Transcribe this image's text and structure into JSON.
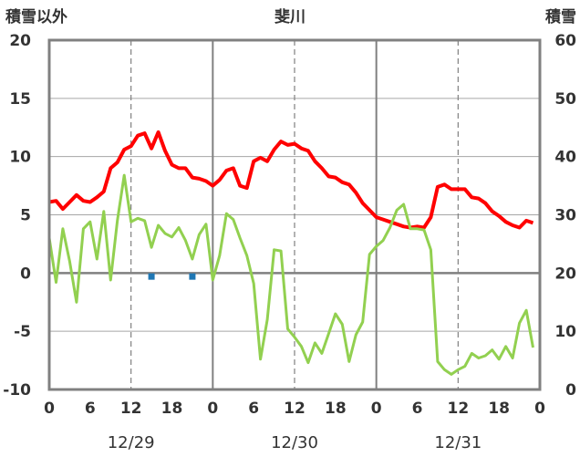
{
  "chart_data": {
    "type": "line",
    "title": "斐川",
    "left_axis_label": "積雪以外",
    "right_axis_label": "積雪",
    "y_left": {
      "min": -10,
      "max": 20,
      "ticks": [
        -10,
        -5,
        0,
        5,
        10,
        15,
        20
      ],
      "tick_labels": [
        "-10",
        "-5",
        "0",
        "5",
        "10",
        "15",
        "20"
      ]
    },
    "y_right": {
      "min": 0,
      "max": 60,
      "ticks": [
        0,
        10,
        20,
        30,
        40,
        50,
        60
      ],
      "tick_labels": [
        "0",
        "10",
        "20",
        "30",
        "40",
        "50",
        "60"
      ]
    },
    "x_axis": {
      "min_hour": 0,
      "max_hour": 72,
      "ticks": [
        {
          "hour": 0,
          "label": "0"
        },
        {
          "hour": 6,
          "label": "6"
        },
        {
          "hour": 12,
          "label": "12"
        },
        {
          "hour": 18,
          "label": "18"
        },
        {
          "hour": 24,
          "label": "0"
        },
        {
          "hour": 30,
          "label": "6"
        },
        {
          "hour": 36,
          "label": "12"
        },
        {
          "hour": 42,
          "label": "18"
        },
        {
          "hour": 48,
          "label": "0"
        },
        {
          "hour": 54,
          "label": "6"
        },
        {
          "hour": 60,
          "label": "12"
        },
        {
          "hour": 66,
          "label": "18"
        },
        {
          "hour": 72,
          "label": "0"
        }
      ],
      "date_labels": [
        {
          "hour": 12,
          "label": "12/29"
        },
        {
          "hour": 36,
          "label": "12/30"
        },
        {
          "hour": 60,
          "label": "12/31"
        }
      ],
      "day_boundaries": [
        24,
        48
      ],
      "dashed_grid_hours": [
        12,
        36,
        60
      ]
    },
    "grid": {
      "horizontal": true,
      "zero_line": true
    },
    "series": [
      {
        "color": "#ff0000",
        "axis": "left",
        "x": [
          0,
          1,
          2,
          3,
          4,
          5,
          6,
          7,
          8,
          9,
          10,
          11,
          12,
          13,
          14,
          15,
          16,
          17,
          18,
          19,
          20,
          21,
          22,
          23,
          24,
          25,
          26,
          27,
          28,
          29,
          30,
          31,
          32,
          33,
          34,
          35,
          36,
          37,
          38,
          39,
          40,
          41,
          42,
          43,
          44,
          45,
          46,
          47,
          48,
          49,
          50,
          51,
          52,
          53,
          54,
          55,
          56,
          57,
          58,
          59,
          60,
          61,
          62,
          63,
          64,
          65,
          66,
          67,
          68,
          69,
          70,
          71
        ],
        "y": [
          6.1,
          6.2,
          5.5,
          6.1,
          6.7,
          6.2,
          6.1,
          6.5,
          7.0,
          9.0,
          9.5,
          10.6,
          10.9,
          11.8,
          12.0,
          10.7,
          12.1,
          10.5,
          9.3,
          9.0,
          9.0,
          8.2,
          8.1,
          7.9,
          7.5,
          8.0,
          8.8,
          9.0,
          7.5,
          7.3,
          9.6,
          9.9,
          9.6,
          10.6,
          11.3,
          11.0,
          11.1,
          10.7,
          10.5,
          9.6,
          9.0,
          8.3,
          8.2,
          7.8,
          7.6,
          6.9,
          6.0,
          5.4,
          4.8,
          4.6,
          4.4,
          4.2,
          4.0,
          3.9,
          4.0,
          3.9,
          4.8,
          7.4,
          7.6,
          7.2,
          7.2,
          7.2,
          6.5,
          6.4,
          6.0,
          5.3,
          4.9,
          4.4,
          4.1,
          3.9,
          4.5,
          4.3
        ]
      },
      {
        "color": "#92d050",
        "axis": "left",
        "x": [
          0,
          1,
          2,
          3,
          4,
          5,
          6,
          7,
          8,
          9,
          10,
          11,
          12,
          13,
          14,
          15,
          16,
          17,
          18,
          19,
          20,
          21,
          22,
          23,
          24,
          25,
          26,
          27,
          28,
          29,
          30,
          31,
          32,
          33,
          34,
          35,
          36,
          37,
          38,
          39,
          40,
          41,
          42,
          43,
          44,
          45,
          46,
          47,
          48,
          49,
          50,
          51,
          52,
          53,
          54,
          55,
          56,
          57,
          58,
          59,
          60,
          61,
          62,
          63,
          64,
          65,
          66,
          67,
          68,
          69,
          70,
          71
        ],
        "y": [
          3.0,
          -0.8,
          3.8,
          1.0,
          -2.5,
          3.8,
          4.4,
          1.2,
          5.3,
          -0.6,
          4.5,
          8.4,
          4.4,
          4.7,
          4.5,
          2.2,
          4.1,
          3.4,
          3.1,
          3.9,
          2.8,
          1.2,
          3.3,
          4.2,
          -0.6,
          1.5,
          5.1,
          4.6,
          3.0,
          1.5,
          -0.9,
          -7.4,
          -4.0,
          2.0,
          1.9,
          -4.8,
          -5.5,
          -6.3,
          -7.7,
          -6.0,
          -6.9,
          -5.2,
          -3.5,
          -4.4,
          -7.6,
          -5.3,
          -4.2,
          1.6,
          2.3,
          2.8,
          3.9,
          5.4,
          5.9,
          3.8,
          3.8,
          3.7,
          2.0,
          -7.6,
          -8.3,
          -8.7,
          -8.3,
          -8.0,
          -6.9,
          -7.3,
          -7.1,
          -6.6,
          -7.4,
          -6.3,
          -7.3,
          -4.3,
          -3.2,
          -6.4
        ]
      },
      {
        "color": "#1f77b4",
        "axis": "left",
        "marker": "square",
        "x": [
          15,
          21
        ],
        "y": [
          -0.3,
          -0.3
        ]
      },
      {
        "color": "#7030a0",
        "axis": "right",
        "x": [
          0,
          72
        ],
        "y": [
          0,
          0
        ]
      }
    ]
  }
}
